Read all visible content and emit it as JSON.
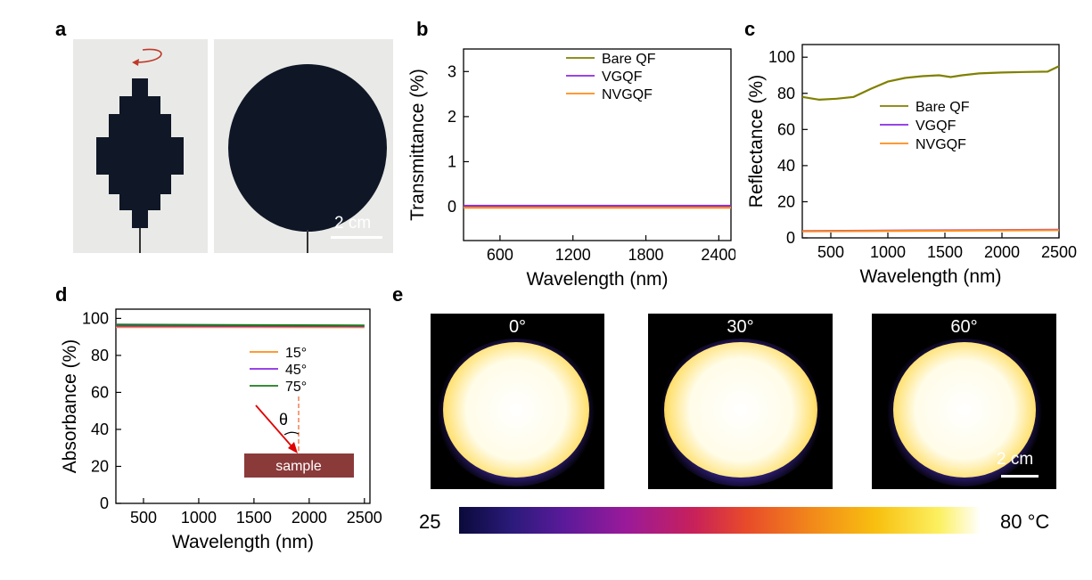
{
  "panels": {
    "a": "a",
    "b": "b",
    "c": "c",
    "d": "d",
    "e": "e"
  },
  "panel_a": {
    "scale_bar": "2 cm"
  },
  "panel_e": {
    "angles": [
      "0°",
      "30°",
      "60°"
    ],
    "scale_bar": "2 cm",
    "colorbar_min": "25",
    "colorbar_max": "80 °C"
  },
  "chart_data": [
    {
      "id": "b",
      "type": "line",
      "xlabel": "Wavelength (nm)",
      "ylabel": "Transmittance (%)",
      "xlim": [
        300,
        2500
      ],
      "ylim": [
        -0.75,
        3.5
      ],
      "xticks": [
        600,
        1200,
        1800,
        2400
      ],
      "yticks": [
        0,
        1,
        2,
        3
      ],
      "legend_position": "top-right",
      "series": [
        {
          "name": "Bare QF",
          "color": "#808000",
          "x": [
            300,
            2500
          ],
          "values": [
            0.0,
            0.0
          ]
        },
        {
          "name": "VGQF",
          "color": "#8a2be2",
          "x": [
            300,
            2500
          ],
          "values": [
            0.02,
            0.02
          ]
        },
        {
          "name": "NVGQF",
          "color": "#ff8c1a",
          "x": [
            300,
            2500
          ],
          "values": [
            -0.02,
            -0.02
          ]
        }
      ]
    },
    {
      "id": "c",
      "type": "line",
      "xlabel": "Wavelength (nm)",
      "ylabel": "Reflectance (%)",
      "xlim": [
        250,
        2500
      ],
      "ylim": [
        0,
        107
      ],
      "xticks": [
        500,
        1000,
        1500,
        2000,
        2500
      ],
      "yticks": [
        0,
        20,
        40,
        60,
        80,
        100
      ],
      "legend_position": "center-right",
      "series": [
        {
          "name": "Bare QF",
          "color": "#808000",
          "x": [
            250,
            400,
            550,
            700,
            850,
            1000,
            1150,
            1300,
            1450,
            1550,
            1650,
            1800,
            2000,
            2200,
            2400,
            2500
          ],
          "values": [
            78,
            76.5,
            77,
            78,
            82.5,
            86.5,
            88.5,
            89.5,
            90,
            89,
            90,
            91,
            91.5,
            91.8,
            92,
            95
          ]
        },
        {
          "name": "VGQF",
          "color": "#8a2be2",
          "x": [
            250,
            2500
          ],
          "values": [
            3.8,
            4.5
          ]
        },
        {
          "name": "NVGQF",
          "color": "#ff8c1a",
          "x": [
            250,
            2500
          ],
          "values": [
            3.6,
            4.3
          ]
        }
      ]
    },
    {
      "id": "d",
      "type": "line",
      "xlabel": "Wavelength (nm)",
      "ylabel": "Absorbance (%)",
      "xlim": [
        250,
        2550
      ],
      "ylim": [
        0,
        105
      ],
      "xticks": [
        500,
        1000,
        1500,
        2000,
        2500
      ],
      "yticks": [
        0,
        20,
        40,
        60,
        80,
        100
      ],
      "legend_position": "right",
      "inset_label": "sample",
      "inset_symbol": "θ",
      "series": [
        {
          "name": "15°",
          "color": "#ff8c1a",
          "x": [
            250,
            2500
          ],
          "values": [
            95.3,
            95.2
          ]
        },
        {
          "name": "45°",
          "color": "#8a2be2",
          "x": [
            250,
            2500
          ],
          "values": [
            96.0,
            95.8
          ]
        },
        {
          "name": "75°",
          "color": "#1e7a1e",
          "x": [
            250,
            2500
          ],
          "values": [
            96.6,
            96.2
          ]
        }
      ]
    }
  ]
}
